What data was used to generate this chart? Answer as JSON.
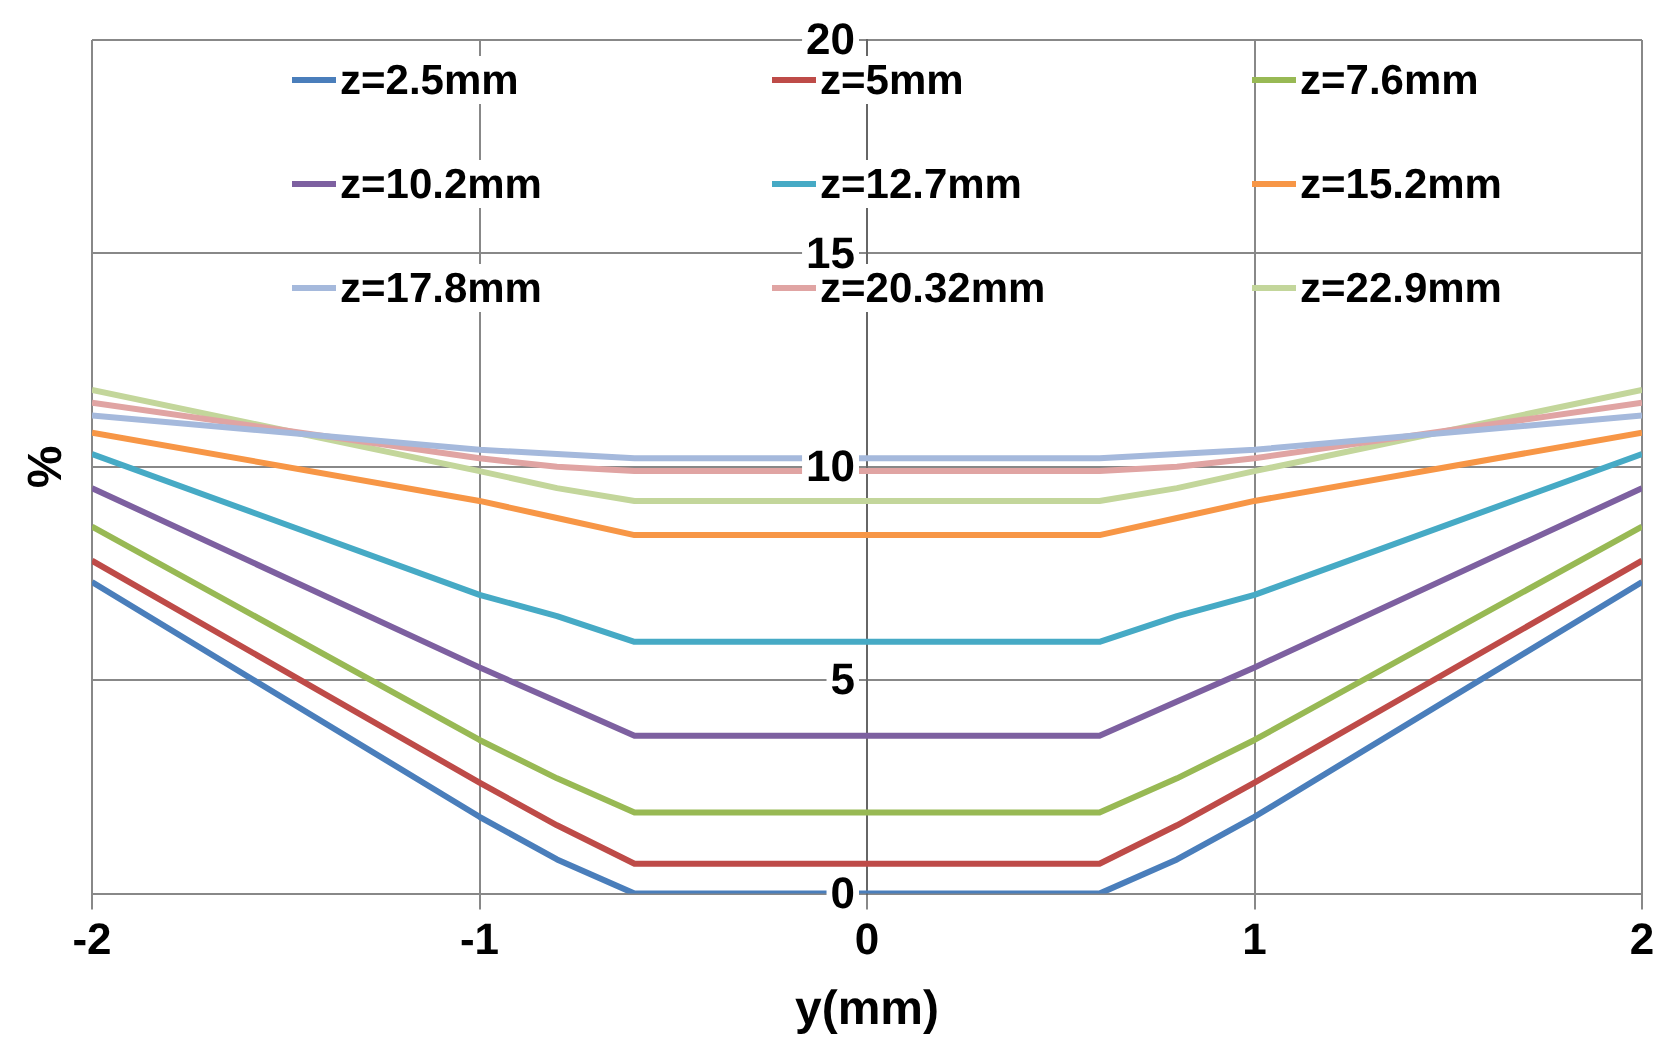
{
  "chart_data": {
    "type": "line",
    "xlabel": "y(mm)",
    "ylabel": "%",
    "x": [
      -2,
      -1,
      -0.8,
      -0.6,
      0.6,
      0.8,
      1,
      2
    ],
    "xlim": [
      -2,
      2
    ],
    "xticks": [
      -2,
      -1,
      0,
      1,
      2
    ],
    "ylim": [
      0,
      20
    ],
    "yticks": [
      0,
      5,
      10,
      15,
      20
    ],
    "grid": true,
    "legend": "top",
    "marker": "none",
    "line_style": "solid",
    "series": [
      {
        "name": "z=2.5mm",
        "color": "#4a7ebb",
        "values": [
          7.3,
          1.8,
          0.8,
          0,
          0,
          0.8,
          1.8,
          7.3
        ]
      },
      {
        "name": "z=5mm",
        "color": "#be4b48",
        "values": [
          7.8,
          2.6,
          1.6,
          0.7,
          0.7,
          1.6,
          2.6,
          7.8
        ]
      },
      {
        "name": "z=7.6mm",
        "color": "#98b954",
        "values": [
          8.6,
          3.6,
          2.7,
          1.9,
          1.9,
          2.7,
          3.6,
          8.6
        ]
      },
      {
        "name": "z=10.2mm",
        "color": "#7d60a0",
        "values": [
          9.5,
          5.3,
          4.5,
          3.7,
          3.7,
          4.5,
          5.3,
          9.5
        ]
      },
      {
        "name": "z=12.7mm",
        "color": "#46aac5",
        "values": [
          10.3,
          7,
          6.5,
          5.9,
          5.9,
          6.5,
          7,
          10.3
        ]
      },
      {
        "name": "z=15.2mm",
        "color": "#f79646",
        "values": [
          10.8,
          9.2,
          8.8,
          8.4,
          8.4,
          8.8,
          9.2,
          10.8
        ]
      },
      {
        "name": "z=17.8mm",
        "color": "#a5b9dc",
        "values": [
          11.2,
          10.4,
          10.3,
          10.2,
          10.2,
          10.3,
          10.4,
          11.2
        ]
      },
      {
        "name": "z=20.32mm",
        "color": "#e0a4a3",
        "values": [
          11.5,
          10.2,
          10,
          9.9,
          9.9,
          10,
          10.2,
          11.5
        ]
      },
      {
        "name": "z=22.9mm",
        "color": "#c3d69b",
        "values": [
          11.8,
          9.9,
          9.5,
          9.2,
          9.2,
          9.5,
          9.9,
          11.8
        ]
      }
    ]
  }
}
